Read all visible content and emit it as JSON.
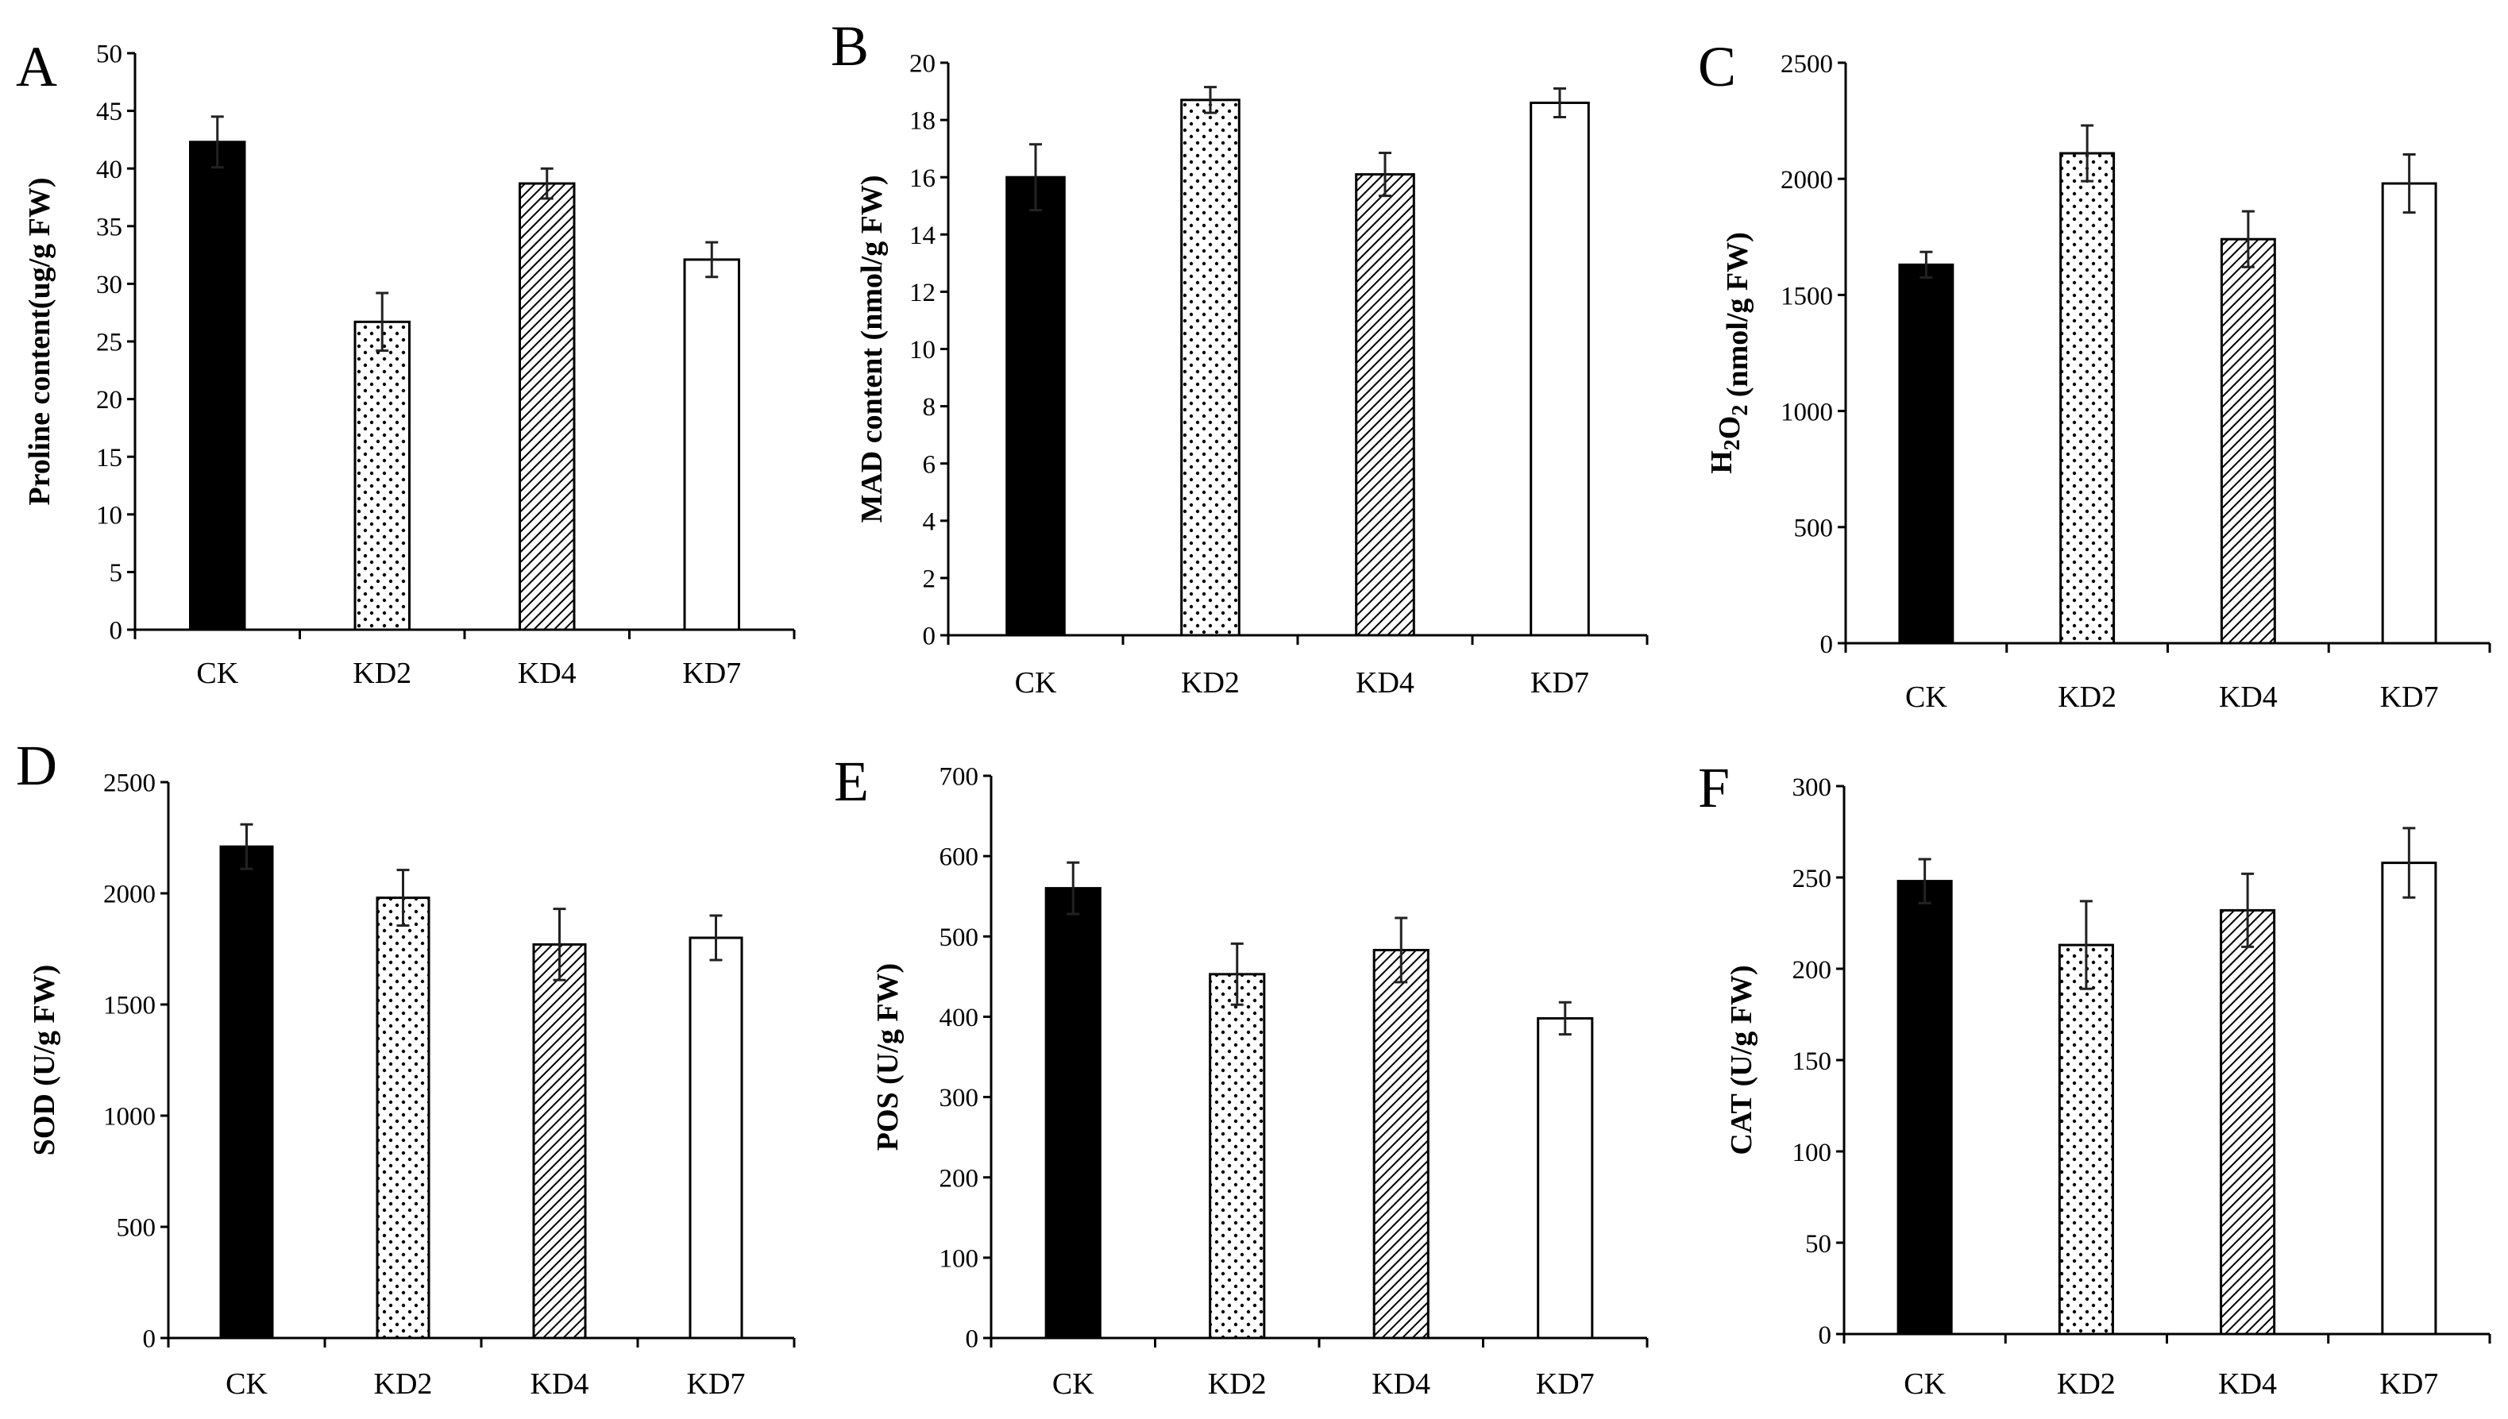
{
  "figure": {
    "panel_letters": [
      "A",
      "B",
      "C",
      "D",
      "E",
      "F"
    ]
  },
  "colors": {
    "ink": "#000000",
    "error_bar": "#222222",
    "background": "#ffffff"
  },
  "chart_data": [
    {
      "panel": "A",
      "type": "bar",
      "categories": [
        "CK",
        "KD2",
        "KD4",
        "KD7"
      ],
      "values": [
        42.3,
        26.7,
        38.7,
        32.1
      ],
      "errors": [
        2.2,
        2.5,
        1.3,
        1.5
      ],
      "fills": [
        "solid",
        "dots",
        "hatch",
        "empty"
      ],
      "ylabel": "Proline content(ug/g FW)",
      "ylim": [
        0,
        50
      ],
      "yticks": [
        0,
        5,
        10,
        15,
        20,
        25,
        30,
        35,
        40,
        45,
        50
      ],
      "grid": false
    },
    {
      "panel": "B",
      "type": "bar",
      "categories": [
        "CK",
        "KD2",
        "KD4",
        "KD7"
      ],
      "values": [
        16.0,
        18.7,
        16.1,
        18.6
      ],
      "errors": [
        1.15,
        0.45,
        0.75,
        0.5
      ],
      "fills": [
        "solid",
        "dots",
        "hatch",
        "empty"
      ],
      "ylabel": "MAD content (nmol/g FW)",
      "ylim": [
        0,
        20
      ],
      "yticks": [
        0,
        2,
        4,
        6,
        8,
        10,
        12,
        14,
        16,
        18,
        20
      ],
      "grid": false
    },
    {
      "panel": "C",
      "type": "bar",
      "categories": [
        "CK",
        "KD2",
        "KD4",
        "KD7"
      ],
      "values": [
        1630,
        2110,
        1740,
        1980
      ],
      "errors": [
        55,
        120,
        120,
        125
      ],
      "fills": [
        "solid",
        "dots",
        "hatch",
        "empty"
      ],
      "ylabel_main": "H",
      "ylabel_sub1": "2",
      "ylabel_mid": "O",
      "ylabel_sub2": "2",
      "ylabel_tail": " (nmol/g FW)",
      "ylim": [
        0,
        2500
      ],
      "yticks": [
        0,
        500,
        1000,
        1500,
        2000,
        2500
      ],
      "grid": false
    },
    {
      "panel": "D",
      "type": "bar",
      "categories": [
        "CK",
        "KD2",
        "KD4",
        "KD7"
      ],
      "values": [
        2210,
        1980,
        1770,
        1800
      ],
      "errors": [
        100,
        125,
        160,
        100
      ],
      "fills": [
        "solid",
        "dots",
        "hatch",
        "empty"
      ],
      "ylabel": "SOD (U/g FW)",
      "ylim": [
        0,
        2500
      ],
      "yticks": [
        0,
        500,
        1000,
        1500,
        2000,
        2500
      ],
      "grid": false
    },
    {
      "panel": "E",
      "type": "bar",
      "categories": [
        "CK",
        "KD2",
        "KD4",
        "KD7"
      ],
      "values": [
        560,
        453,
        483,
        398
      ],
      "errors": [
        32,
        38,
        40,
        20
      ],
      "fills": [
        "solid",
        "dots",
        "hatch",
        "empty"
      ],
      "ylabel": "POS (U/g FW)",
      "ylim": [
        0,
        700
      ],
      "yticks": [
        0,
        100,
        200,
        300,
        400,
        500,
        600,
        700
      ],
      "grid": false
    },
    {
      "panel": "F",
      "type": "bar",
      "categories": [
        "CK",
        "KD2",
        "KD4",
        "KD7"
      ],
      "values": [
        248,
        213,
        232,
        258
      ],
      "errors": [
        12,
        24,
        20,
        19
      ],
      "fills": [
        "solid",
        "dots",
        "hatch",
        "empty"
      ],
      "ylabel": "CAT (U/g FW)",
      "ylim": [
        0,
        300
      ],
      "yticks": [
        0,
        50,
        100,
        150,
        200,
        250,
        300
      ],
      "grid": false
    }
  ]
}
